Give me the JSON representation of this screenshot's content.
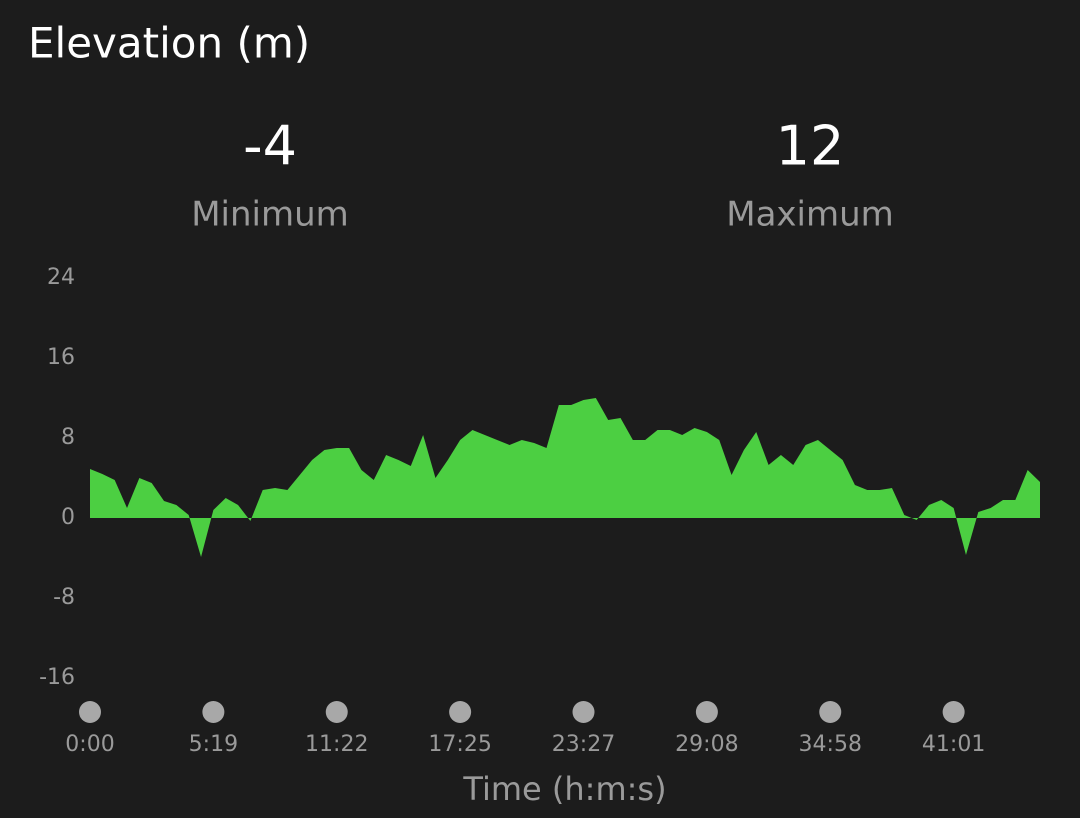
{
  "chart_data": {
    "type": "area",
    "title": "Elevation (m)",
    "stats": [
      {
        "value": -4,
        "label": "Minimum"
      },
      {
        "value": 12,
        "label": "Maximum"
      }
    ],
    "x_label": "Time (h:m:s)",
    "categories": [
      "0:00",
      null,
      null,
      null,
      null,
      null,
      null,
      null,
      null,
      null,
      "5:19",
      null,
      null,
      null,
      null,
      null,
      null,
      null,
      null,
      null,
      "11:22",
      null,
      null,
      null,
      null,
      null,
      null,
      null,
      null,
      null,
      "17:25",
      null,
      null,
      null,
      null,
      null,
      null,
      null,
      null,
      null,
      "23:27",
      null,
      null,
      null,
      null,
      null,
      null,
      null,
      null,
      null,
      "29:08",
      null,
      null,
      null,
      null,
      null,
      null,
      null,
      null,
      null,
      "34:58",
      null,
      null,
      null,
      null,
      null,
      null,
      null,
      null,
      null,
      "41:01",
      null,
      null,
      null,
      null,
      null,
      null,
      null
    ],
    "values": [
      4.9,
      4.4,
      3.8,
      1.0,
      4.0,
      3.5,
      1.7,
      1.3,
      0.3,
      -3.9,
      0.8,
      2.0,
      1.3,
      -0.3,
      2.8,
      3.0,
      2.8,
      4.3,
      5.8,
      6.8,
      7.0,
      7.0,
      4.8,
      3.8,
      6.3,
      5.8,
      5.2,
      8.3,
      4.0,
      5.8,
      7.8,
      8.8,
      8.3,
      7.8,
      7.3,
      7.8,
      7.5,
      7.0,
      11.3,
      11.3,
      11.8,
      12.0,
      9.8,
      10.0,
      7.8,
      7.8,
      8.8,
      8.8,
      8.3,
      9.0,
      8.6,
      7.8,
      4.3,
      6.8,
      8.6,
      5.3,
      6.3,
      5.3,
      7.3,
      7.8,
      6.8,
      5.8,
      3.3,
      2.8,
      2.8,
      3.0,
      0.3,
      -0.2,
      1.3,
      1.8,
      1.0,
      -3.7,
      0.6,
      1.0,
      1.8,
      1.8,
      4.8,
      3.6
    ],
    "color": "#4ccf42",
    "ylim": [
      -16,
      24
    ],
    "yticks": [
      -16,
      -8,
      0,
      8,
      16,
      24
    ],
    "grid": false
  }
}
